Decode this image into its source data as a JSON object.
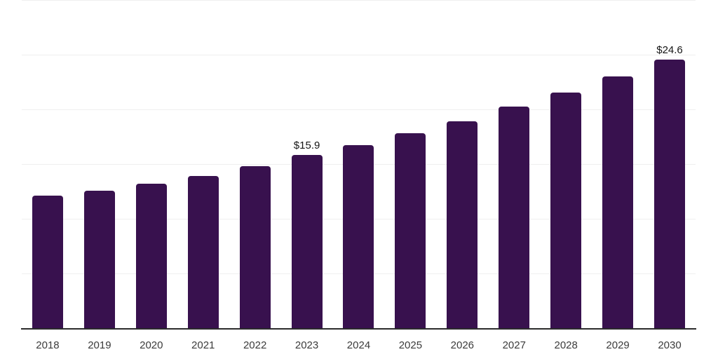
{
  "chart_data": {
    "type": "bar",
    "title": "",
    "xlabel": "",
    "ylabel": "",
    "categories": [
      "2018",
      "2019",
      "2020",
      "2021",
      "2022",
      "2023",
      "2024",
      "2025",
      "2026",
      "2027",
      "2028",
      "2029",
      "2030"
    ],
    "values": [
      12.2,
      12.6,
      13.3,
      14.0,
      14.9,
      15.9,
      16.8,
      17.9,
      19.0,
      20.3,
      21.6,
      23.1,
      24.6
    ],
    "data_labels": [
      "",
      "",
      "",
      "",
      "",
      "$15.9",
      "",
      "",
      "",
      "",
      "",
      "",
      "$24.6"
    ],
    "ylim": [
      0,
      30
    ],
    "gridline_values": [
      5,
      10,
      15,
      20,
      25,
      30
    ],
    "grid": "horizontal-only, no y tick labels",
    "legend_position": "none",
    "colors": {
      "bar": "#38114E",
      "gridline": "#efefef",
      "axis_line": "#2c2c2c",
      "tick_label": "#3b3b3b",
      "data_label": "#151515",
      "background": "#ffffff"
    }
  }
}
